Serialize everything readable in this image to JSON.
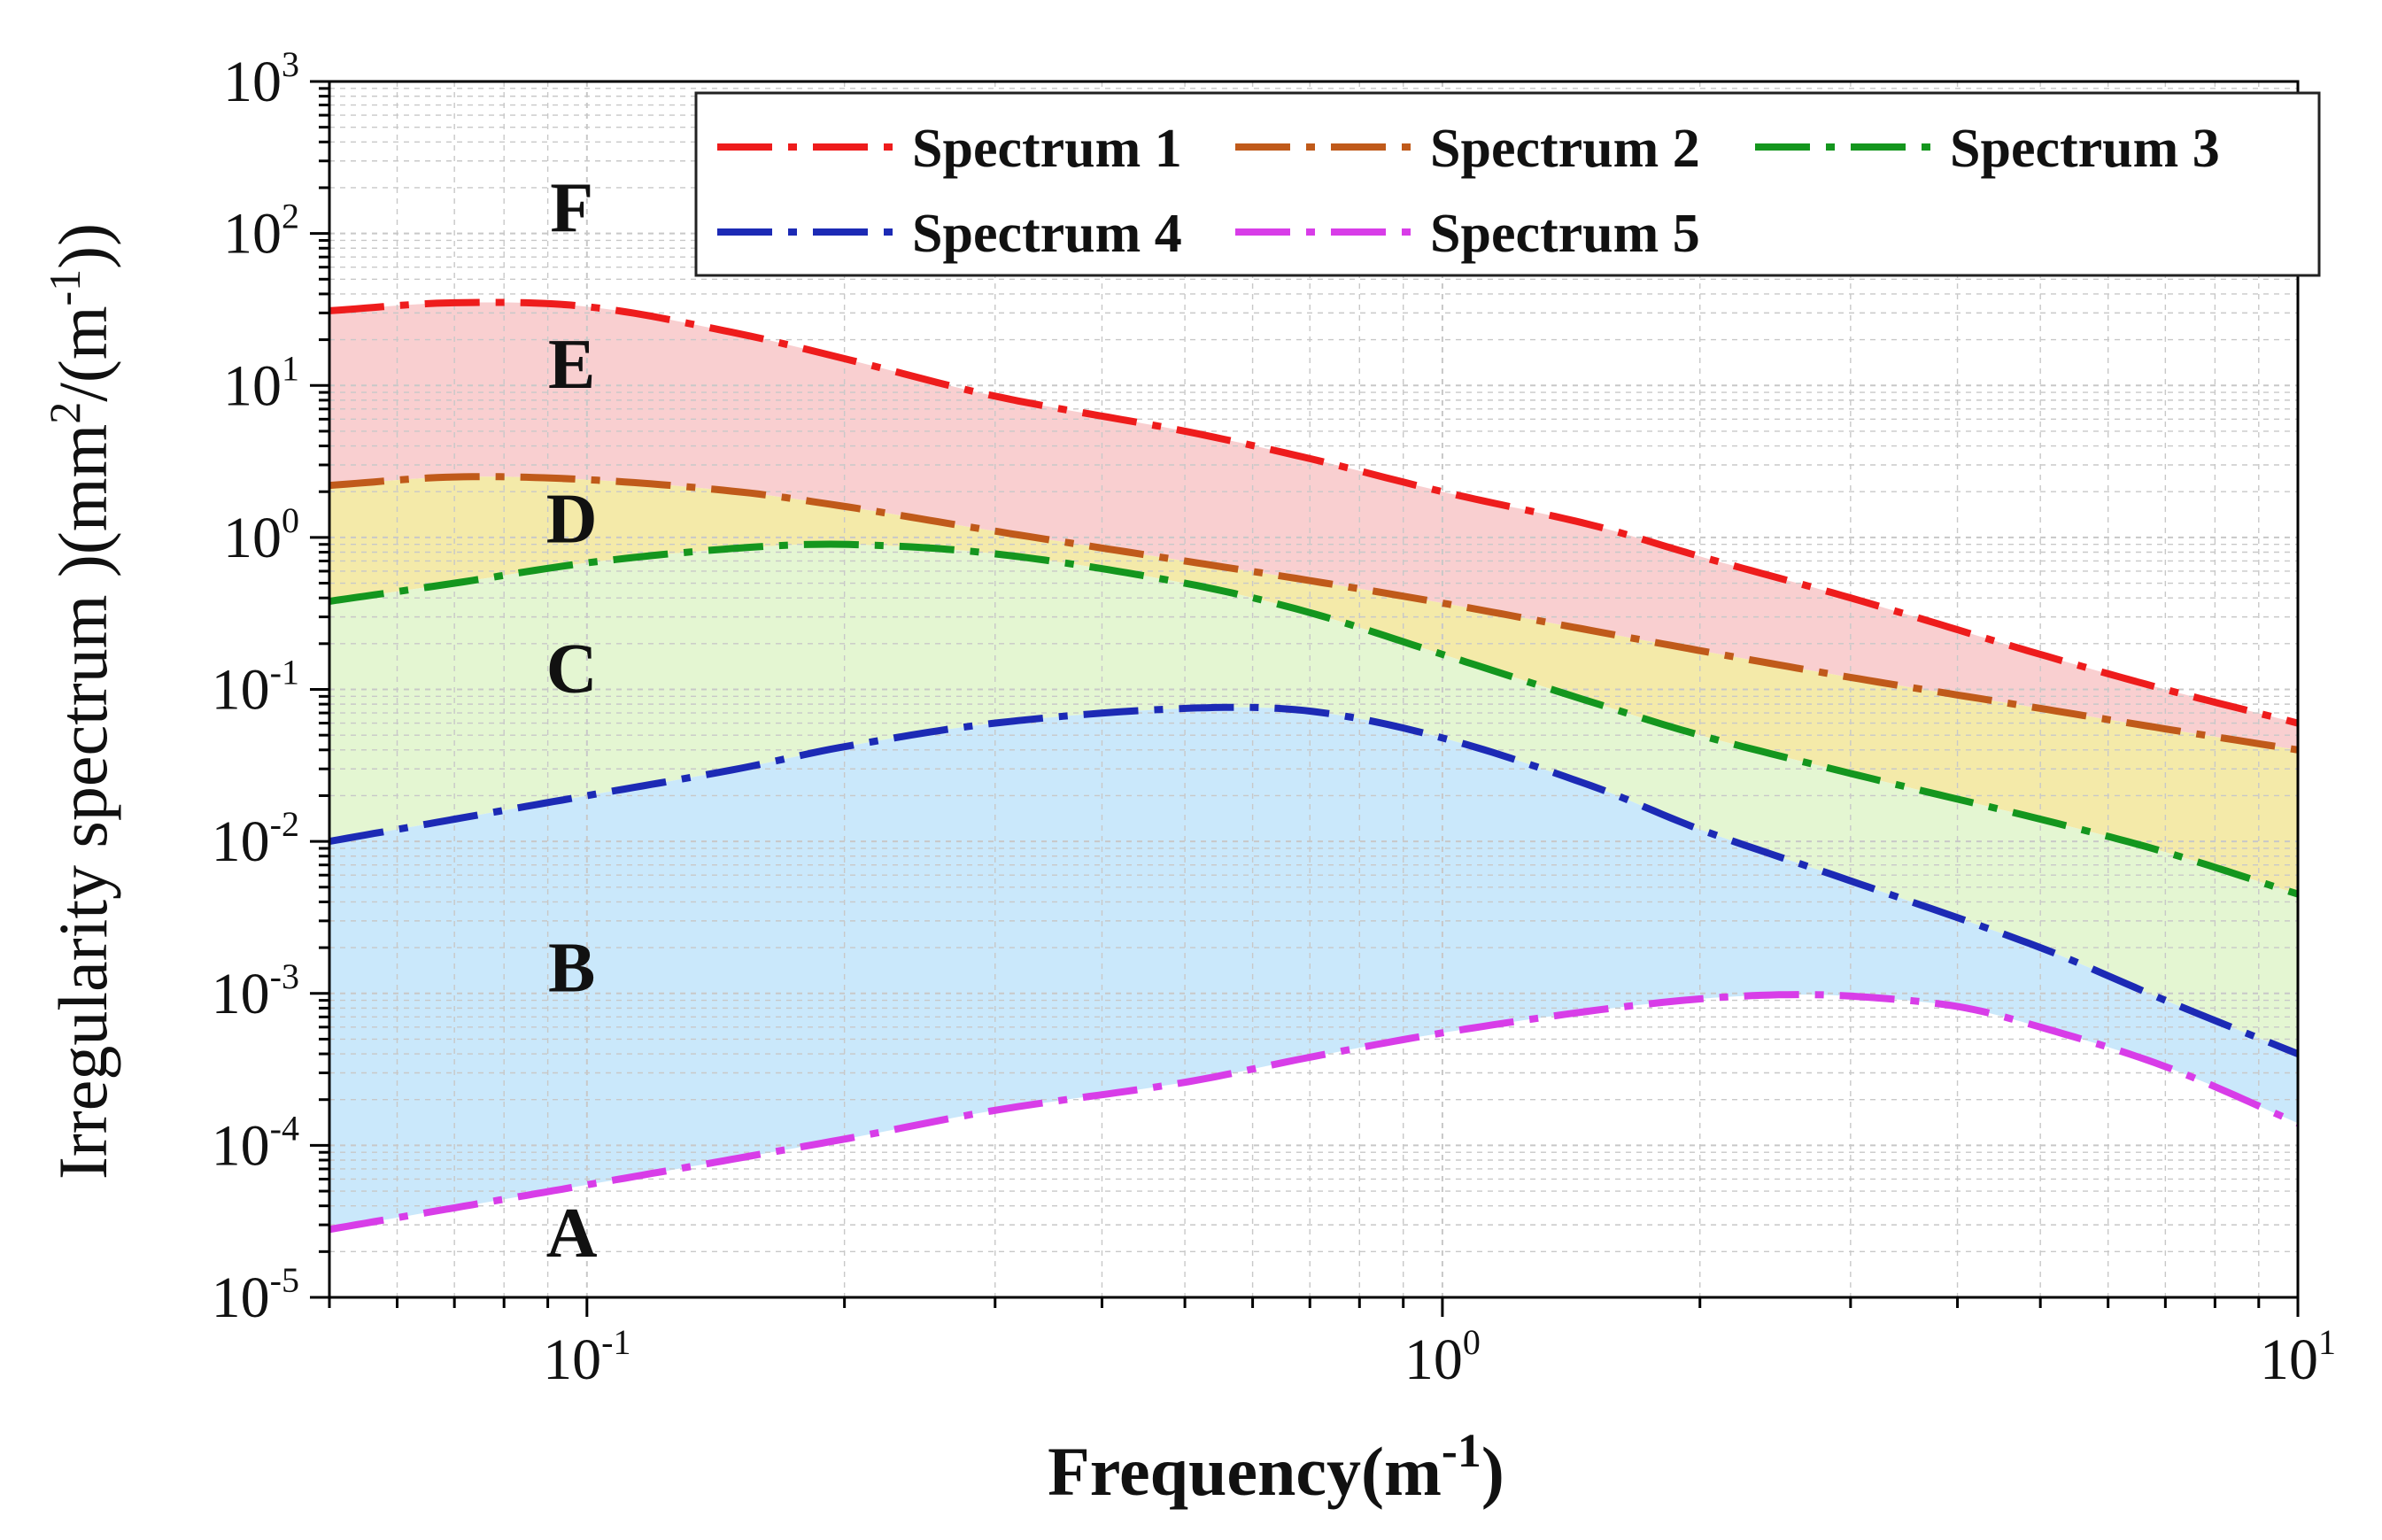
{
  "chart_data": {
    "type": "area",
    "title": "",
    "xlabel": "Frequency(m",
    "xlabel_sup": "-1",
    "xlabel_close": ")",
    "ylabel_parts": [
      "Irregularity spectrum )(mm",
      "2",
      "/(m",
      "-1",
      "))"
    ],
    "xscale": "log",
    "yscale": "log",
    "xlim": [
      0.05,
      10
    ],
    "ylim": [
      1e-05,
      1000
    ],
    "grid": true,
    "legend_position": "top-right",
    "x_ticks": [
      {
        "value": 0.1,
        "base": "10",
        "exp": "-1"
      },
      {
        "value": 1,
        "base": "10",
        "exp": "0"
      },
      {
        "value": 10,
        "base": "10",
        "exp": "1"
      }
    ],
    "y_ticks": [
      {
        "value": 1e-05,
        "base": "10",
        "exp": "-5"
      },
      {
        "value": 0.0001,
        "base": "10",
        "exp": "-4"
      },
      {
        "value": 0.001,
        "base": "10",
        "exp": "-3"
      },
      {
        "value": 0.01,
        "base": "10",
        "exp": "-2"
      },
      {
        "value": 0.1,
        "base": "10",
        "exp": "-1"
      },
      {
        "value": 1,
        "base": "10",
        "exp": "0"
      },
      {
        "value": 10,
        "base": "10",
        "exp": "1"
      },
      {
        "value": 100,
        "base": "10",
        "exp": "2"
      },
      {
        "value": 1000,
        "base": "10",
        "exp": "3"
      }
    ],
    "series": [
      {
        "name": "Spectrum 1",
        "color": "#ee1c1c",
        "fill": "#f9cfd0",
        "points": [
          [
            0.05,
            31
          ],
          [
            0.07,
            35
          ],
          [
            0.1,
            33
          ],
          [
            0.15,
            22
          ],
          [
            0.2,
            15
          ],
          [
            0.3,
            8.5
          ],
          [
            0.5,
            5
          ],
          [
            0.7,
            3.3
          ],
          [
            1,
            2.0
          ],
          [
            1.5,
            1.2
          ],
          [
            2,
            0.75
          ],
          [
            3,
            0.4
          ],
          [
            5,
            0.17
          ],
          [
            7,
            0.1
          ],
          [
            10,
            0.06
          ]
        ]
      },
      {
        "name": "Spectrum 2",
        "color": "#c05a1a",
        "fill": "#f4eaa9",
        "points": [
          [
            0.05,
            2.2
          ],
          [
            0.07,
            2.5
          ],
          [
            0.1,
            2.4
          ],
          [
            0.15,
            2.0
          ],
          [
            0.2,
            1.6
          ],
          [
            0.3,
            1.1
          ],
          [
            0.5,
            0.7
          ],
          [
            0.7,
            0.52
          ],
          [
            1,
            0.37
          ],
          [
            2,
            0.18
          ],
          [
            3,
            0.12
          ],
          [
            5,
            0.075
          ],
          [
            7,
            0.055
          ],
          [
            10,
            0.04
          ]
        ]
      },
      {
        "name": "Spectrum 3",
        "color": "#14961e",
        "fill": "#e4f6d2",
        "points": [
          [
            0.05,
            0.38
          ],
          [
            0.07,
            0.5
          ],
          [
            0.1,
            0.68
          ],
          [
            0.15,
            0.85
          ],
          [
            0.2,
            0.9
          ],
          [
            0.3,
            0.78
          ],
          [
            0.5,
            0.5
          ],
          [
            0.7,
            0.32
          ],
          [
            1,
            0.17
          ],
          [
            1.5,
            0.082
          ],
          [
            2,
            0.05
          ],
          [
            3,
            0.028
          ],
          [
            5,
            0.014
          ],
          [
            7,
            0.0085
          ],
          [
            10,
            0.0045
          ]
        ]
      },
      {
        "name": "Spectrum 4",
        "color": "#1c2ab5",
        "fill": "#cae8fb",
        "points": [
          [
            0.05,
            0.01
          ],
          [
            0.07,
            0.014
          ],
          [
            0.1,
            0.02
          ],
          [
            0.15,
            0.03
          ],
          [
            0.2,
            0.042
          ],
          [
            0.3,
            0.06
          ],
          [
            0.5,
            0.075
          ],
          [
            0.7,
            0.072
          ],
          [
            1,
            0.048
          ],
          [
            1.5,
            0.023
          ],
          [
            2,
            0.012
          ],
          [
            3,
            0.0055
          ],
          [
            5,
            0.002
          ],
          [
            7,
            0.0009
          ],
          [
            10,
            0.0004
          ]
        ]
      },
      {
        "name": "Spectrum 5",
        "color": "#d83de8",
        "fill": "#cae8fb",
        "points": [
          [
            0.05,
            2.8e-05
          ],
          [
            0.1,
            5.5e-05
          ],
          [
            0.2,
            0.00011
          ],
          [
            0.3,
            0.00017
          ],
          [
            0.5,
            0.00026
          ],
          [
            0.7,
            0.00038
          ],
          [
            1,
            0.00055
          ],
          [
            1.5,
            0.00077
          ],
          [
            2,
            0.00092
          ],
          [
            2.5,
            0.00098
          ],
          [
            3,
            0.00096
          ],
          [
            4,
            0.00082
          ],
          [
            5,
            0.0006
          ],
          [
            7,
            0.00033
          ],
          [
            10,
            0.00014
          ]
        ]
      }
    ],
    "regions": [
      {
        "label": "F",
        "x": 0.096,
        "y": 150
      },
      {
        "label": "E",
        "x": 0.096,
        "y": 14
      },
      {
        "label": "D",
        "x": 0.096,
        "y": 1.35
      },
      {
        "label": "C",
        "x": 0.096,
        "y": 0.14
      },
      {
        "label": "B",
        "x": 0.096,
        "y": 0.0015
      },
      {
        "label": "A",
        "x": 0.096,
        "y": 2.7e-05
      }
    ]
  }
}
